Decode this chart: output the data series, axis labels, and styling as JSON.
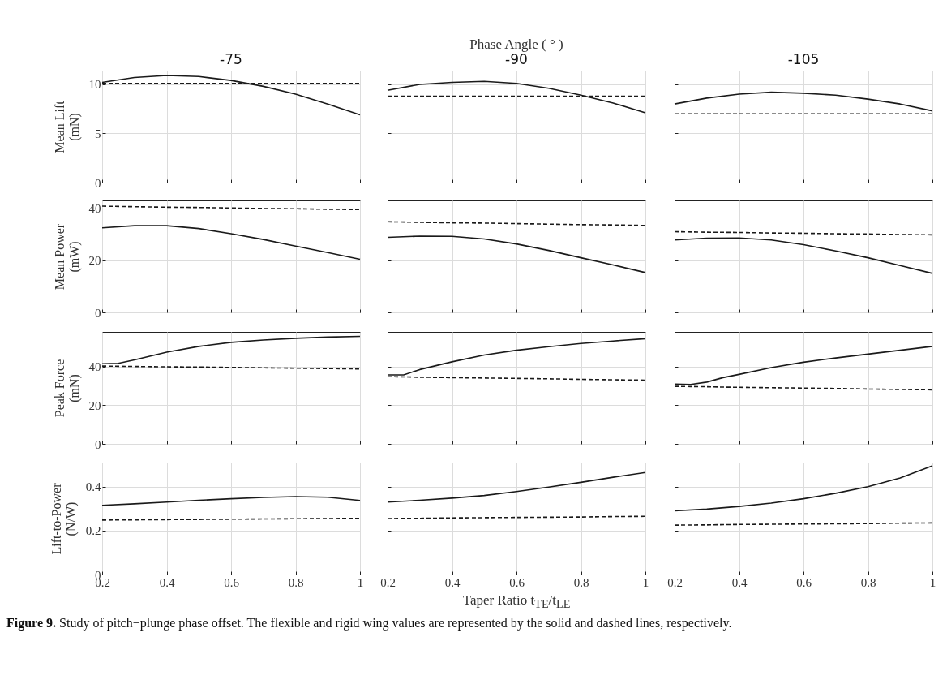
{
  "chart_data": [
    {
      "type": "line",
      "title": "-75",
      "ylabel": "Mean Lift (mN)",
      "x": [
        0.2,
        0.3,
        0.4,
        0.5,
        0.6,
        0.7,
        0.8,
        0.9,
        1
      ],
      "xlim": [
        0.2,
        1
      ],
      "ylim": [
        0,
        11.4
      ],
      "xticks": [
        0.2,
        0.4,
        0.6,
        0.8,
        1
      ],
      "yticks": [
        0,
        5,
        10
      ],
      "grid": true,
      "tick_labels": "y",
      "series": [
        {
          "color": "#1a1a1a",
          "line_style": "solid",
          "values": [
            10.2,
            10.7,
            10.9,
            10.8,
            10.4,
            9.8,
            9.0,
            8.0,
            6.9
          ]
        },
        {
          "color": "#1a1a1a",
          "line_style": "dashed",
          "values": [
            10.1,
            10.1,
            10.1,
            10.1,
            10.1,
            10.1,
            10.1,
            10.1,
            10.1
          ]
        }
      ]
    },
    {
      "type": "line",
      "title": "-90",
      "annotations": [
        "Phase Angle ( ° )"
      ],
      "x": [
        0.2,
        0.3,
        0.4,
        0.5,
        0.6,
        0.7,
        0.8,
        0.9,
        1
      ],
      "xlim": [
        0.2,
        1
      ],
      "ylim": [
        0,
        11.4
      ],
      "xticks": [
        0.2,
        0.4,
        0.6,
        0.8,
        1
      ],
      "yticks": [
        0,
        5,
        10
      ],
      "grid": true,
      "tick_labels": false,
      "series": [
        {
          "color": "#1a1a1a",
          "line_style": "solid",
          "values": [
            9.4,
            10.0,
            10.2,
            10.3,
            10.1,
            9.6,
            8.9,
            8.1,
            7.1
          ]
        },
        {
          "color": "#1a1a1a",
          "line_style": "dashed",
          "values": [
            8.8,
            8.8,
            8.8,
            8.8,
            8.8,
            8.8,
            8.8,
            8.8,
            8.8
          ]
        }
      ]
    },
    {
      "type": "line",
      "title": "-105",
      "x": [
        0.2,
        0.3,
        0.4,
        0.5,
        0.6,
        0.7,
        0.8,
        0.9,
        1
      ],
      "xlim": [
        0.2,
        1
      ],
      "ylim": [
        0,
        11.4
      ],
      "xticks": [
        0.2,
        0.4,
        0.6,
        0.8,
        1
      ],
      "yticks": [
        0,
        5,
        10
      ],
      "grid": true,
      "tick_labels": false,
      "series": [
        {
          "color": "#1a1a1a",
          "line_style": "solid",
          "values": [
            8.0,
            8.6,
            9.0,
            9.2,
            9.1,
            8.9,
            8.5,
            8.0,
            7.3
          ]
        },
        {
          "color": "#1a1a1a",
          "line_style": "dashed",
          "values": [
            7.0,
            7.0,
            7.0,
            7.0,
            7.0,
            7.0,
            7.0,
            7.0,
            7.0
          ]
        }
      ]
    },
    {
      "type": "line",
      "ylabel": "Mean Power (mW)",
      "x": [
        0.2,
        0.3,
        0.4,
        0.5,
        0.6,
        0.7,
        0.8,
        0.9,
        1
      ],
      "xlim": [
        0.2,
        1
      ],
      "ylim": [
        0,
        43
      ],
      "xticks": [
        0.2,
        0.4,
        0.6,
        0.8,
        1
      ],
      "yticks": [
        0,
        20,
        40
      ],
      "grid": true,
      "tick_labels": "y",
      "series": [
        {
          "color": "#1a1a1a",
          "line_style": "solid",
          "values": [
            32.5,
            33.3,
            33.3,
            32.2,
            30.2,
            28,
            25.5,
            23,
            20.4
          ]
        },
        {
          "color": "#1a1a1a",
          "line_style": "dashed",
          "values": [
            40.8,
            40.6,
            40.4,
            40.3,
            40.1,
            39.9,
            39.8,
            39.6,
            39.5
          ]
        }
      ]
    },
    {
      "type": "line",
      "x": [
        0.2,
        0.3,
        0.4,
        0.5,
        0.6,
        0.7,
        0.8,
        0.9,
        1
      ],
      "xlim": [
        0.2,
        1
      ],
      "ylim": [
        0,
        43
      ],
      "xticks": [
        0.2,
        0.4,
        0.6,
        0.8,
        1
      ],
      "yticks": [
        0,
        20,
        40
      ],
      "grid": true,
      "tick_labels": false,
      "series": [
        {
          "color": "#1a1a1a",
          "line_style": "solid",
          "values": [
            28.8,
            29.3,
            29.2,
            28.2,
            26.3,
            23.8,
            21,
            18.2,
            15.3
          ]
        },
        {
          "color": "#1a1a1a",
          "line_style": "dashed",
          "values": [
            34.8,
            34.6,
            34.4,
            34.3,
            34.1,
            33.9,
            33.7,
            33.6,
            33.4
          ]
        }
      ]
    },
    {
      "type": "line",
      "x": [
        0.2,
        0.3,
        0.4,
        0.5,
        0.6,
        0.7,
        0.8,
        0.9,
        1
      ],
      "xlim": [
        0.2,
        1
      ],
      "ylim": [
        0,
        43
      ],
      "xticks": [
        0.2,
        0.4,
        0.6,
        0.8,
        1
      ],
      "yticks": [
        0,
        20,
        40
      ],
      "grid": true,
      "tick_labels": false,
      "series": [
        {
          "color": "#1a1a1a",
          "line_style": "solid",
          "values": [
            27.8,
            28.5,
            28.6,
            27.8,
            26,
            23.6,
            21,
            18,
            15
          ]
        },
        {
          "color": "#1a1a1a",
          "line_style": "dashed",
          "values": [
            31,
            30.8,
            30.7,
            30.5,
            30.4,
            30.2,
            30.1,
            29.9,
            29.8
          ]
        }
      ]
    },
    {
      "type": "line",
      "ylabel": "Peak Force (mN)",
      "x": [
        0.2,
        0.25,
        0.3,
        0.4,
        0.5,
        0.6,
        0.7,
        0.8,
        0.9,
        1
      ],
      "xlim": [
        0.2,
        1
      ],
      "ylim": [
        0,
        58
      ],
      "xticks": [
        0.2,
        0.4,
        0.6,
        0.8,
        1
      ],
      "yticks": [
        0,
        20,
        40
      ],
      "grid": true,
      "tick_labels": "y",
      "series": [
        {
          "color": "#1a1a1a",
          "line_style": "solid",
          "values": [
            41.5,
            41.7,
            43.5,
            47.5,
            50.5,
            52.6,
            53.8,
            54.7,
            55.3,
            55.7
          ]
        },
        {
          "color": "#1a1a1a",
          "line_style": "dashed",
          "values": [
            40.3,
            40.2,
            40.1,
            39.9,
            39.8,
            39.6,
            39.4,
            39.2,
            39,
            38.8
          ]
        }
      ]
    },
    {
      "type": "line",
      "x": [
        0.2,
        0.25,
        0.3,
        0.4,
        0.5,
        0.6,
        0.7,
        0.8,
        0.9,
        1
      ],
      "xlim": [
        0.2,
        1
      ],
      "ylim": [
        0,
        58
      ],
      "xticks": [
        0.2,
        0.4,
        0.6,
        0.8,
        1
      ],
      "yticks": [
        0,
        20,
        40
      ],
      "grid": true,
      "tick_labels": false,
      "series": [
        {
          "color": "#1a1a1a",
          "line_style": "solid",
          "values": [
            35.7,
            35.7,
            38.5,
            42.5,
            46,
            48.5,
            50.3,
            52,
            53.3,
            54.5
          ]
        },
        {
          "color": "#1a1a1a",
          "line_style": "dashed",
          "values": [
            34.8,
            34.7,
            34.5,
            34.3,
            34.1,
            33.9,
            33.7,
            33.4,
            33.2,
            33
          ]
        }
      ]
    },
    {
      "type": "line",
      "x": [
        0.2,
        0.25,
        0.3,
        0.35,
        0.4,
        0.5,
        0.6,
        0.7,
        0.8,
        0.9,
        1
      ],
      "xlim": [
        0.2,
        1
      ],
      "ylim": [
        0,
        58
      ],
      "xticks": [
        0.2,
        0.4,
        0.6,
        0.8,
        1
      ],
      "yticks": [
        0,
        20,
        40
      ],
      "grid": true,
      "tick_labels": false,
      "series": [
        {
          "color": "#1a1a1a",
          "line_style": "solid",
          "values": [
            31,
            30.8,
            32,
            34.3,
            36,
            39.5,
            42.3,
            44.5,
            46.5,
            48.5,
            50.5
          ]
        },
        {
          "color": "#1a1a1a",
          "line_style": "dashed",
          "values": [
            29.8,
            29.7,
            29.6,
            29.4,
            29.3,
            29.1,
            28.9,
            28.7,
            28.4,
            28.2,
            28
          ]
        }
      ]
    },
    {
      "type": "line",
      "ylabel": "Lift-to-Power (N/W)",
      "x": [
        0.2,
        0.3,
        0.4,
        0.5,
        0.6,
        0.7,
        0.8,
        0.9,
        1
      ],
      "xlim": [
        0.2,
        1
      ],
      "ylim": [
        0,
        0.51
      ],
      "xticks": [
        0.2,
        0.4,
        0.6,
        0.8,
        1
      ],
      "yticks": [
        0,
        0.2,
        0.4
      ],
      "grid": true,
      "series": [
        {
          "color": "#1a1a1a",
          "line_style": "solid",
          "values": [
            0.315,
            0.322,
            0.33,
            0.338,
            0.345,
            0.351,
            0.355,
            0.352,
            0.337
          ]
        },
        {
          "color": "#1a1a1a",
          "line_style": "dashed",
          "values": [
            0.248,
            0.249,
            0.25,
            0.251,
            0.252,
            0.253,
            0.254,
            0.255,
            0.256
          ]
        }
      ]
    },
    {
      "type": "line",
      "xlabel": "Taper Ratio t$_{TE}$/t$_{LE}$",
      "annotations": [
        "Figure 9.  Study of pitch−plunge phase offset. The flexible and rigid wing values are represented by the solid and dashed lines, respectively."
      ],
      "x": [
        0.2,
        0.3,
        0.4,
        0.5,
        0.6,
        0.7,
        0.8,
        0.9,
        1
      ],
      "xlim": [
        0.2,
        1
      ],
      "ylim": [
        0,
        0.51
      ],
      "xticks": [
        0.2,
        0.4,
        0.6,
        0.8,
        1
      ],
      "yticks": [
        0,
        0.2,
        0.4
      ],
      "grid": true,
      "tick_labels": "x",
      "series": [
        {
          "color": "#1a1a1a",
          "line_style": "solid",
          "values": [
            0.33,
            0.338,
            0.348,
            0.36,
            0.378,
            0.398,
            0.42,
            0.443,
            0.465
          ]
        },
        {
          "color": "#1a1a1a",
          "line_style": "dashed",
          "values": [
            0.255,
            0.256,
            0.258,
            0.259,
            0.26,
            0.261,
            0.262,
            0.264,
            0.265
          ]
        }
      ]
    },
    {
      "type": "line",
      "x": [
        0.2,
        0.3,
        0.4,
        0.5,
        0.6,
        0.7,
        0.8,
        0.9,
        1
      ],
      "xlim": [
        0.2,
        1
      ],
      "ylim": [
        0,
        0.51
      ],
      "xticks": [
        0.2,
        0.4,
        0.6,
        0.8,
        1
      ],
      "yticks": [
        0,
        0.2,
        0.4
      ],
      "grid": true,
      "tick_labels": "x",
      "series": [
        {
          "color": "#1a1a1a",
          "line_style": "solid",
          "values": [
            0.29,
            0.298,
            0.31,
            0.325,
            0.345,
            0.37,
            0.4,
            0.44,
            0.495
          ]
        },
        {
          "color": "#1a1a1a",
          "line_style": "dashed",
          "values": [
            0.225,
            0.226,
            0.228,
            0.229,
            0.23,
            0.231,
            0.232,
            0.234,
            0.235
          ]
        }
      ]
    }
  ]
}
